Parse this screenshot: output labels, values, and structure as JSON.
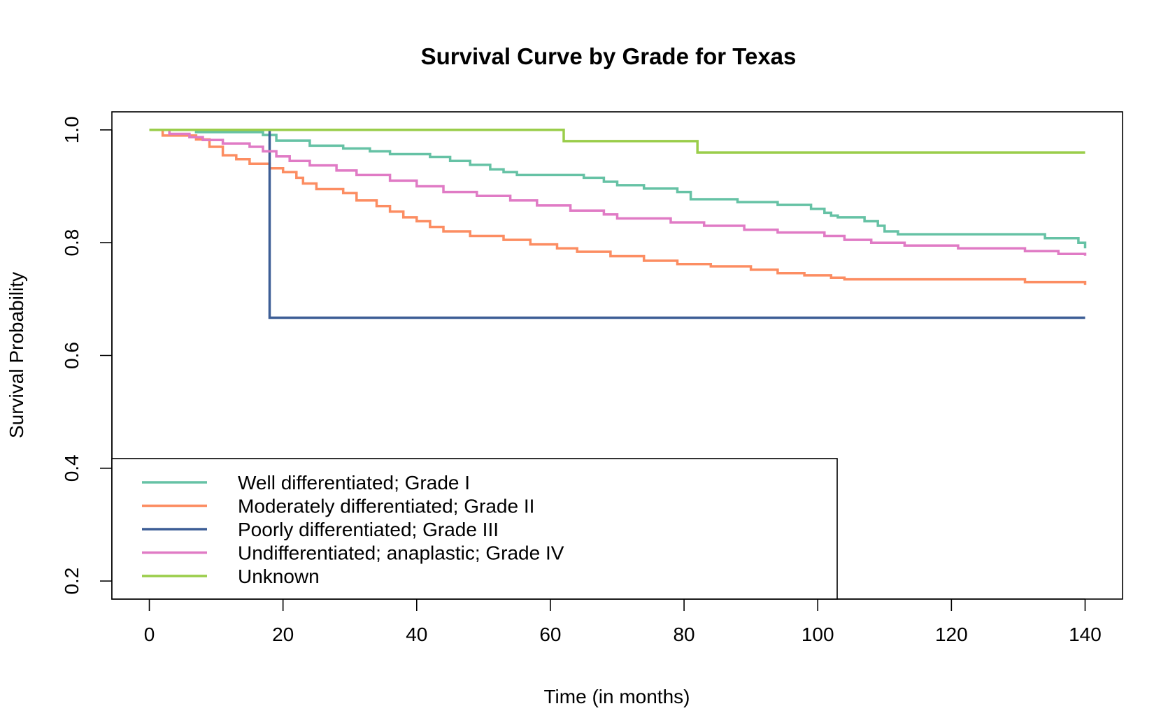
{
  "chart_data": {
    "type": "line",
    "step": true,
    "title": "Survival Curve by Grade for Texas",
    "xlabel": "Time (in months)",
    "ylabel": "Survival Probability",
    "xlim": [
      -5.6,
      145.6
    ],
    "ylim": [
      0.168,
      1.032
    ],
    "x_ticks": [
      0,
      20,
      40,
      60,
      80,
      100,
      120,
      140
    ],
    "x_tick_labels": [
      "0",
      "20",
      "40",
      "60",
      "80",
      "100",
      "120",
      "140"
    ],
    "y_ticks": [
      0.2,
      0.4,
      0.6,
      0.8,
      1.0
    ],
    "y_tick_labels": [
      "0.2",
      "0.4",
      "0.6",
      "0.8",
      "1.0"
    ],
    "grid": false,
    "legend_position": "bottom-left",
    "series": [
      {
        "name": "Well differentiated; Grade I",
        "color": "#66c2a5",
        "x": [
          0,
          7,
          17,
          19,
          24,
          29,
          33,
          36,
          42,
          45,
          48,
          51,
          53,
          55,
          65,
          68,
          70,
          74,
          79,
          81,
          88,
          94,
          99,
          101,
          102,
          103,
          107,
          109,
          110,
          112,
          134,
          139,
          140
        ],
        "y": [
          1.0,
          0.996,
          0.991,
          0.981,
          0.972,
          0.967,
          0.962,
          0.957,
          0.952,
          0.945,
          0.938,
          0.93,
          0.925,
          0.92,
          0.915,
          0.908,
          0.902,
          0.896,
          0.89,
          0.877,
          0.872,
          0.867,
          0.86,
          0.853,
          0.848,
          0.845,
          0.838,
          0.83,
          0.82,
          0.815,
          0.808,
          0.8,
          0.79
        ]
      },
      {
        "name": "Moderately differentiated; Grade II",
        "color": "#fc8d62",
        "x": [
          0,
          2,
          7,
          9,
          11,
          13,
          15,
          18,
          20,
          22,
          23,
          25,
          29,
          31,
          34,
          36,
          38,
          40,
          42,
          44,
          48,
          53,
          57,
          61,
          64,
          69,
          74,
          79,
          84,
          90,
          94,
          98,
          102,
          104,
          131,
          140
        ],
        "y": [
          1.0,
          0.99,
          0.983,
          0.97,
          0.955,
          0.948,
          0.94,
          0.932,
          0.925,
          0.915,
          0.905,
          0.895,
          0.888,
          0.875,
          0.865,
          0.855,
          0.845,
          0.838,
          0.828,
          0.82,
          0.812,
          0.805,
          0.797,
          0.79,
          0.784,
          0.776,
          0.768,
          0.762,
          0.758,
          0.752,
          0.746,
          0.742,
          0.738,
          0.735,
          0.73,
          0.725
        ]
      },
      {
        "name": "Poorly differentiated; Grade III",
        "color": "#3d5e96",
        "x": [
          0,
          18,
          140
        ],
        "y": [
          1.0,
          0.667,
          0.667
        ]
      },
      {
        "name": "Undifferentiated; anaplastic; Grade IV",
        "color": "#e07bc5",
        "x": [
          0,
          3,
          6,
          8,
          11,
          15,
          17,
          19,
          21,
          24,
          28,
          31,
          36,
          40,
          44,
          49,
          54,
          58,
          63,
          68,
          70,
          78,
          83,
          89,
          94,
          101,
          104,
          108,
          113,
          121,
          131,
          136,
          140
        ],
        "y": [
          1.0,
          0.993,
          0.987,
          0.982,
          0.976,
          0.97,
          0.962,
          0.953,
          0.945,
          0.937,
          0.928,
          0.92,
          0.91,
          0.9,
          0.89,
          0.883,
          0.875,
          0.866,
          0.857,
          0.85,
          0.843,
          0.836,
          0.83,
          0.823,
          0.818,
          0.812,
          0.805,
          0.8,
          0.795,
          0.79,
          0.785,
          0.78,
          0.777
        ]
      },
      {
        "name": "Unknown",
        "color": "#9acd4a",
        "x": [
          0,
          62,
          82,
          140
        ],
        "y": [
          1.0,
          0.98,
          0.96,
          0.96
        ]
      }
    ]
  }
}
